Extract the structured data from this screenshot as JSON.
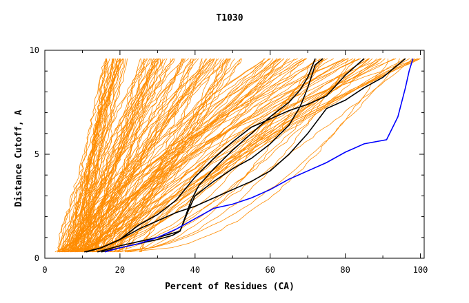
{
  "chart_data": {
    "type": "line",
    "title": "T1030",
    "xlabel": "Percent of Residues (CA)",
    "ylabel": "Distance Cutoff, A",
    "xlim": [
      0,
      101
    ],
    "ylim": [
      0,
      10
    ],
    "x_ticks": [
      "0",
      "20",
      "40",
      "60",
      "80",
      "100"
    ],
    "y_ticks": [
      "0",
      "5",
      "10"
    ],
    "grid": false,
    "colors": {
      "bundle": "#ff8c00",
      "highlight": "#000000",
      "reference": "#0000ff"
    },
    "bundle_description_count": 160,
    "bundle_envelope": {
      "start_x_range": [
        3,
        26
      ],
      "end_x_range": [
        16,
        100
      ]
    },
    "series": [
      {
        "color": "#000000",
        "points": [
          [
            10.5,
            0.3
          ],
          [
            15,
            0.5
          ],
          [
            20,
            0.9
          ],
          [
            25,
            1.6
          ],
          [
            30,
            2.1
          ],
          [
            35,
            2.8
          ],
          [
            40,
            3.9
          ],
          [
            45,
            4.8
          ],
          [
            50,
            5.6
          ],
          [
            55,
            6.3
          ],
          [
            60,
            6.7
          ],
          [
            65,
            7.1
          ],
          [
            70,
            7.4
          ],
          [
            75,
            7.8
          ],
          [
            80,
            8.8
          ],
          [
            85,
            9.6
          ]
        ]
      },
      {
        "color": "#000000",
        "points": [
          [
            11,
            0.3
          ],
          [
            15,
            0.5
          ],
          [
            20,
            0.9
          ],
          [
            25,
            1.4
          ],
          [
            30,
            1.8
          ],
          [
            35,
            2.2
          ],
          [
            40,
            2.5
          ],
          [
            45,
            2.9
          ],
          [
            50,
            3.3
          ],
          [
            55,
            3.7
          ],
          [
            60,
            4.2
          ],
          [
            65,
            5.0
          ],
          [
            70,
            6.0
          ],
          [
            75,
            7.2
          ],
          [
            80,
            7.6
          ],
          [
            85,
            8.2
          ],
          [
            90,
            8.7
          ],
          [
            94,
            9.3
          ],
          [
            96,
            9.6
          ]
        ]
      },
      {
        "color": "#000000",
        "points": [
          [
            14,
            0.3
          ],
          [
            20,
            0.6
          ],
          [
            25,
            0.8
          ],
          [
            30,
            1.0
          ],
          [
            34,
            1.2
          ],
          [
            36,
            1.3
          ],
          [
            38,
            2.2
          ],
          [
            40,
            3.0
          ],
          [
            45,
            3.7
          ],
          [
            50,
            4.3
          ],
          [
            55,
            4.8
          ],
          [
            60,
            5.5
          ],
          [
            65,
            6.4
          ],
          [
            68,
            7.3
          ],
          [
            70,
            8.2
          ],
          [
            72,
            9.3
          ],
          [
            74,
            9.6
          ]
        ]
      },
      {
        "color": "#000000",
        "points": [
          [
            15,
            0.3
          ],
          [
            20,
            0.5
          ],
          [
            25,
            0.7
          ],
          [
            30,
            0.9
          ],
          [
            34,
            1.1
          ],
          [
            36,
            1.3
          ],
          [
            37,
            1.8
          ],
          [
            39,
            2.8
          ],
          [
            41,
            3.5
          ],
          [
            45,
            4.3
          ],
          [
            50,
            5.2
          ],
          [
            55,
            6.0
          ],
          [
            60,
            6.8
          ],
          [
            65,
            7.5
          ],
          [
            68,
            8.1
          ],
          [
            70,
            8.7
          ],
          [
            72,
            9.6
          ]
        ]
      },
      {
        "color": "#0000ff",
        "points": [
          [
            16,
            0.3
          ],
          [
            20,
            0.5
          ],
          [
            25,
            0.7
          ],
          [
            30,
            1.0
          ],
          [
            35,
            1.4
          ],
          [
            40,
            1.9
          ],
          [
            45,
            2.4
          ],
          [
            50,
            2.6
          ],
          [
            55,
            2.9
          ],
          [
            60,
            3.3
          ],
          [
            65,
            3.8
          ],
          [
            70,
            4.2
          ],
          [
            75,
            4.6
          ],
          [
            80,
            5.1
          ],
          [
            85,
            5.5
          ],
          [
            91,
            5.7
          ],
          [
            94,
            6.8
          ],
          [
            96,
            8.2
          ],
          [
            97,
            9.0
          ],
          [
            98,
            9.6
          ]
        ]
      }
    ]
  }
}
